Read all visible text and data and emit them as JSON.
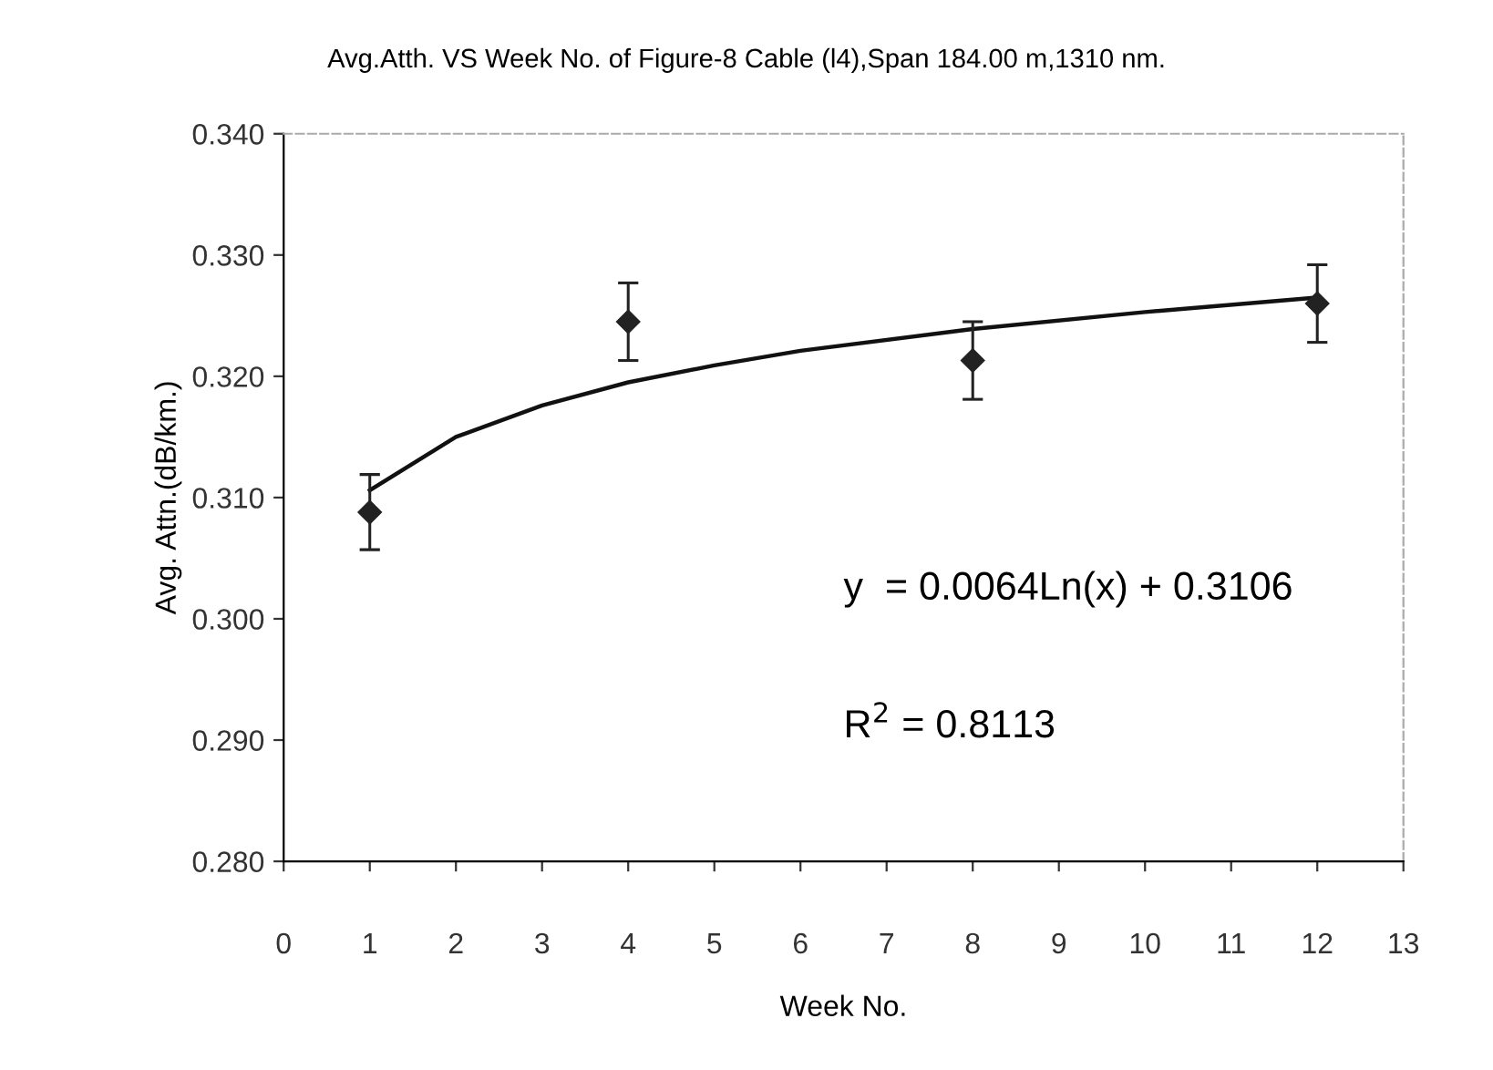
{
  "chart_data": {
    "type": "scatter",
    "title": "Avg.Atth. VS Week No. of Figure-8 Cable (l4),Span 184.00 m,1310 nm.",
    "xlabel": "Week No.",
    "ylabel": "Avg. Attn.(dB/km.)",
    "series": [
      {
        "color": "#222222",
        "x": [
          1,
          4,
          8,
          12
        ],
        "values": [
          0.3088,
          0.3245,
          0.3213,
          0.326
        ],
        "errors": [
          0.0031,
          0.0032,
          0.0032,
          0.0032
        ],
        "marker": "diamond"
      },
      {
        "type": "line",
        "color": "#111111",
        "x": [
          1,
          2,
          3,
          4,
          5,
          6,
          8,
          10,
          12
        ],
        "values": [
          0.3106,
          0.315,
          0.3176,
          0.3195,
          0.3209,
          0.3221,
          0.3239,
          0.3253,
          0.3265
        ],
        "marker": "none",
        "line_style": "solid"
      }
    ],
    "xlim": [
      0,
      13
    ],
    "xticks": [
      0,
      1,
      2,
      3,
      4,
      5,
      6,
      7,
      8,
      9,
      10,
      11,
      12,
      13
    ],
    "ylim": [
      0.28,
      0.34
    ],
    "yticks": [
      {
        "value": 0.28,
        "label": "0.280"
      },
      {
        "value": 0.29,
        "label": "0.290"
      },
      {
        "value": 0.3,
        "label": "0.300"
      },
      {
        "value": 0.31,
        "label": "0.310"
      },
      {
        "value": 0.32,
        "label": "0.320"
      },
      {
        "value": 0.33,
        "label": "0.330"
      },
      {
        "value": 0.34,
        "label": "0.340"
      }
    ],
    "grid": false,
    "legend": false,
    "annotations": [
      "y  = 0.0064Ln(x) + 0.3106",
      "R$^{2}$ = 0.8113"
    ]
  }
}
